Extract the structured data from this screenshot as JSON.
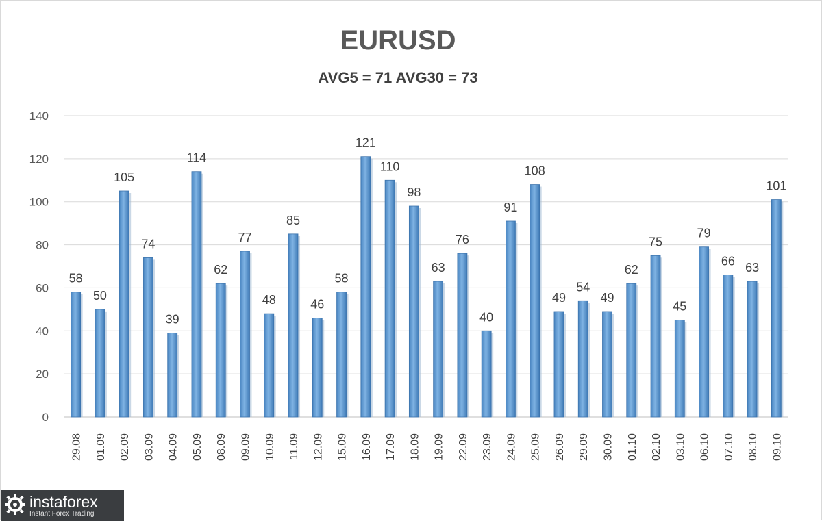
{
  "chart_data": {
    "type": "bar",
    "title": "EURUSD",
    "subtitle": "AVG5 = 71 AVG30 = 73",
    "categories": [
      "29.08",
      "01.09",
      "02.09",
      "03.09",
      "04.09",
      "05.09",
      "08.09",
      "09.09",
      "10.09",
      "11.09",
      "12.09",
      "15.09",
      "16.09",
      "17.09",
      "18.09",
      "19.09",
      "22.09",
      "23.09",
      "24.09",
      "25.09",
      "26.09",
      "29.09",
      "30.09",
      "01.10",
      "02.10",
      "03.10",
      "06.10",
      "07.10",
      "08.10",
      "09.10"
    ],
    "values": [
      58,
      50,
      105,
      74,
      39,
      114,
      62,
      77,
      48,
      85,
      46,
      58,
      121,
      110,
      98,
      63,
      76,
      40,
      91,
      108,
      49,
      54,
      49,
      62,
      75,
      45,
      79,
      66,
      63,
      101
    ],
    "ylim": [
      0,
      140
    ],
    "yticks": [
      0,
      20,
      40,
      60,
      80,
      100,
      120,
      140
    ],
    "grid": true,
    "bar_color": "#5b9bd5",
    "data_labels": true
  },
  "logo": {
    "name": "instaforex",
    "tagline": "Instant Forex Trading"
  }
}
